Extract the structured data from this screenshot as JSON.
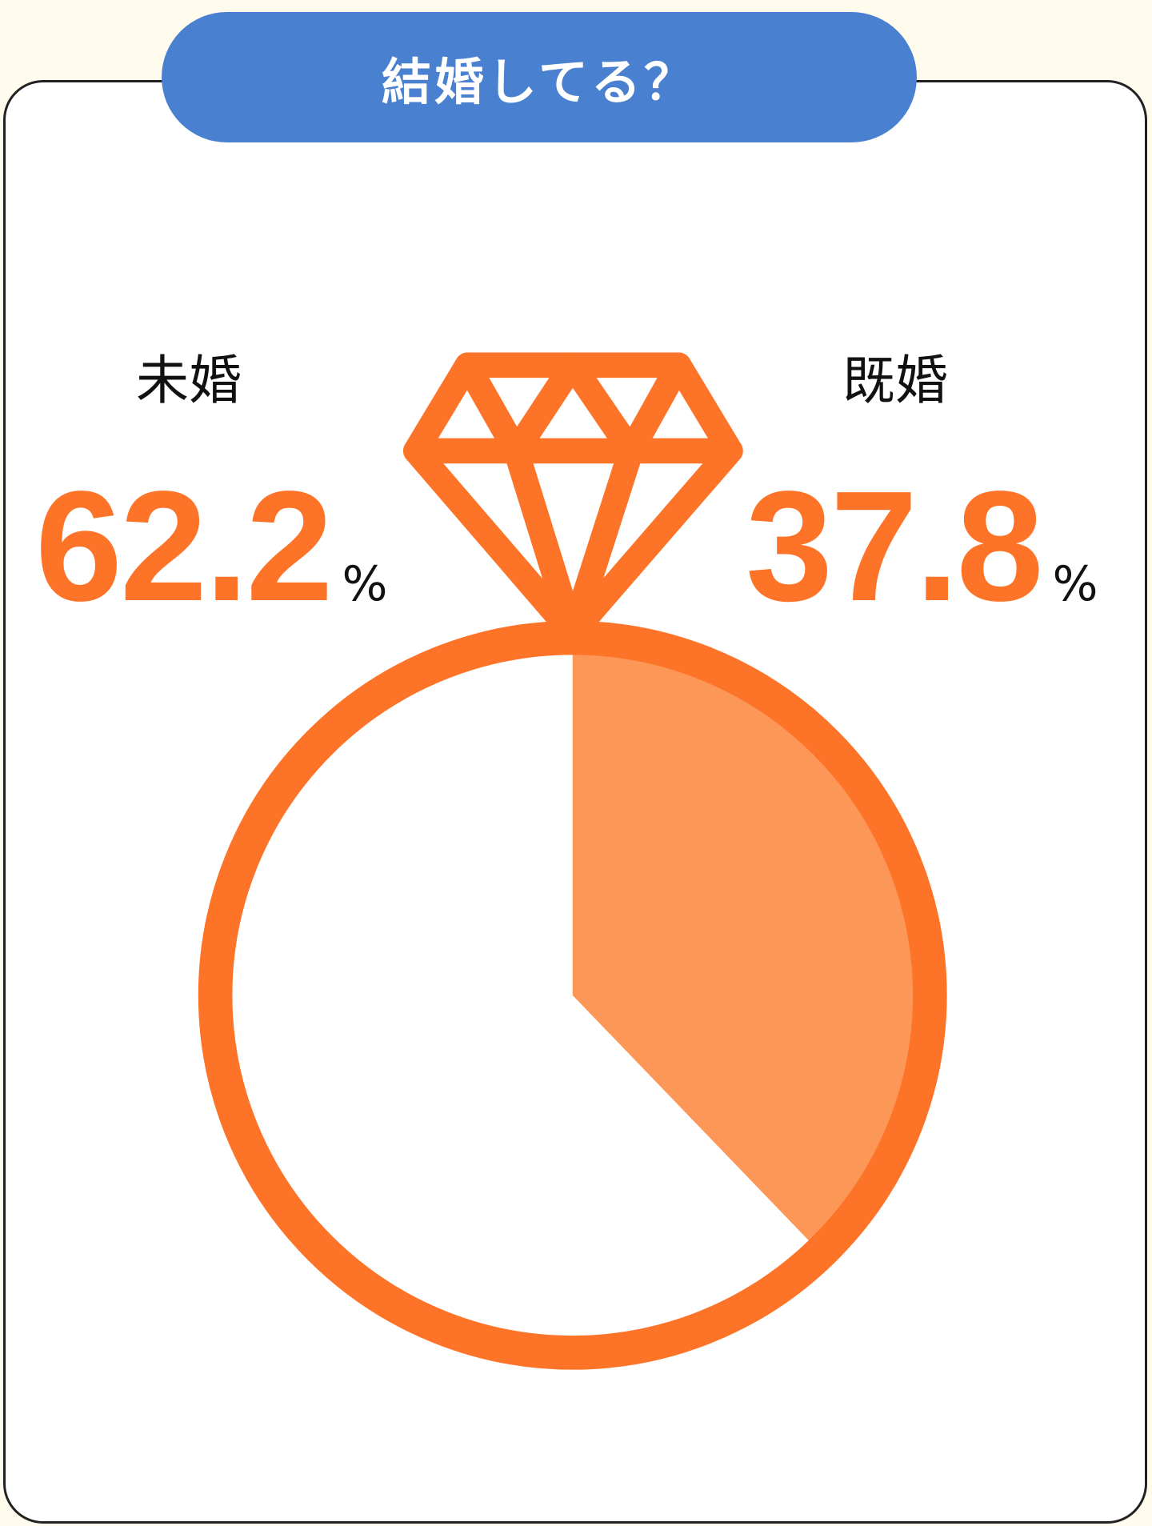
{
  "title": "結婚してる？",
  "colors": {
    "accent": "#fd7428",
    "slice_light": "#fd9758",
    "pill": "#4a80d0",
    "background": "#fffcee"
  },
  "icon": "diamond-ring-icon",
  "labels": [
    {
      "name": "未婚",
      "value": "62.2",
      "unit": "%"
    },
    {
      "name": "既婚",
      "value": "37.8",
      "unit": "%"
    }
  ],
  "chart_data": {
    "type": "pie",
    "title": "結婚してる？",
    "categories": [
      "未婚",
      "既婚"
    ],
    "values": [
      62.2,
      37.8
    ],
    "unit": "%",
    "start": "top",
    "direction": "clockwise-from-既婚"
  }
}
